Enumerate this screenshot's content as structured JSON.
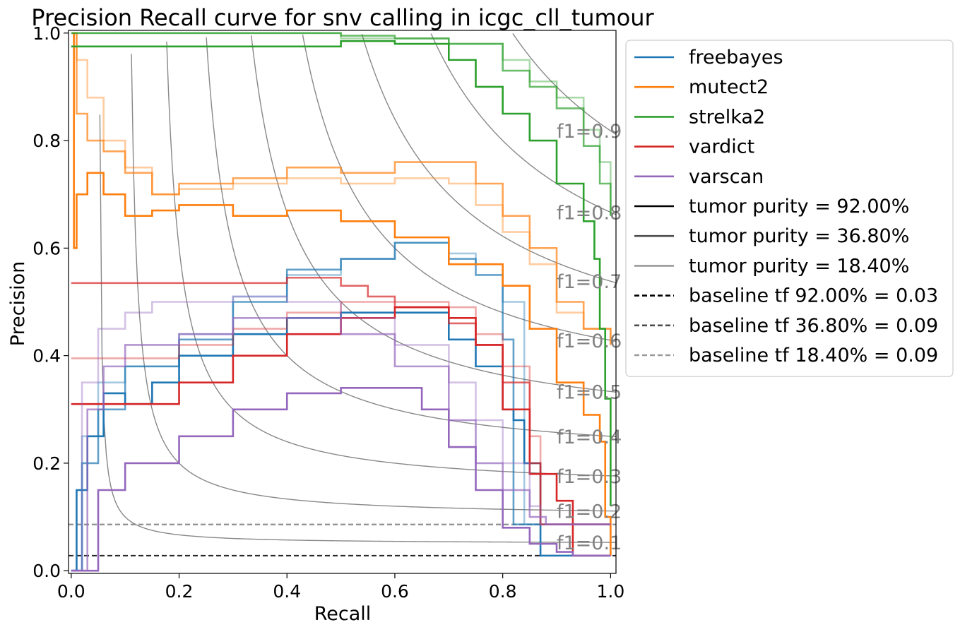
{
  "chart_data": {
    "type": "line",
    "title": "Precision Recall curve for snv calling in icgc_cll_tumour",
    "xlabel": "Recall",
    "ylabel": "Precision",
    "xlim": [
      -0.005,
      1.01
    ],
    "ylim": [
      -0.005,
      1.005
    ],
    "xticks": [
      0.0,
      0.2,
      0.4,
      0.6,
      0.8,
      1.0
    ],
    "yticks": [
      0.0,
      0.2,
      0.4,
      0.6,
      0.8,
      1.0
    ],
    "tick_labels_x": [
      "0.0",
      "0.2",
      "0.4",
      "0.6",
      "0.8",
      "1.0"
    ],
    "tick_labels_y": [
      "0.0",
      "0.2",
      "0.4",
      "0.6",
      "0.8",
      "1.0"
    ],
    "grid": false,
    "legend_position": "outside-right-top",
    "callers": [
      {
        "name": "freebayes",
        "color": "#1f77b4"
      },
      {
        "name": "mutect2",
        "color": "#ff7f0e"
      },
      {
        "name": "strelka2",
        "color": "#2ca02c"
      },
      {
        "name": "vardict",
        "color": "#d62728"
      },
      {
        "name": "varscan",
        "color": "#9467bd"
      }
    ],
    "purities": [
      {
        "label": "tumor purity = 92.00%",
        "alpha": 1.0,
        "legend_color": "#000000"
      },
      {
        "label": "tumor purity = 36.80%",
        "alpha": 0.7,
        "legend_color": "#4d4d4d"
      },
      {
        "label": "tumor purity = 18.40%",
        "alpha": 0.4,
        "legend_color": "#999999"
      }
    ],
    "baselines": [
      {
        "label": "baseline tf 92.00% = 0.03",
        "value": 0.028,
        "color": "#000000"
      },
      {
        "label": "baseline tf 36.80% = 0.09",
        "value": 0.086,
        "color": "#4d4d4d"
      },
      {
        "label": "baseline tf 18.40% = 0.09",
        "value": 0.086,
        "color": "#999999"
      }
    ],
    "f1_contours": [
      {
        "f1": 0.1,
        "label": "f1=0.1"
      },
      {
        "f1": 0.2,
        "label": "f1=0.2"
      },
      {
        "f1": 0.3,
        "label": "f1=0.3"
      },
      {
        "f1": 0.4,
        "label": "f1=0.4"
      },
      {
        "f1": 0.5,
        "label": "f1=0.5"
      },
      {
        "f1": 0.6,
        "label": "f1=0.6"
      },
      {
        "f1": 0.7,
        "label": "f1=0.7"
      },
      {
        "f1": 0.8,
        "label": "f1=0.8"
      },
      {
        "f1": 0.9,
        "label": "f1=0.9"
      }
    ],
    "series": [
      {
        "name": "freebayes",
        "purity": "92.00%",
        "recall": [
          0.0,
          0.01,
          0.03,
          0.06,
          0.1,
          0.15,
          0.2,
          0.3,
          0.4,
          0.5,
          0.6,
          0.7,
          0.75,
          0.8,
          0.82,
          0.84,
          0.87,
          0.87,
          1.0
        ],
        "precision": [
          0.0,
          0.15,
          0.25,
          0.33,
          0.31,
          0.35,
          0.4,
          0.44,
          0.47,
          0.48,
          0.48,
          0.43,
          0.38,
          0.3,
          0.28,
          0.2,
          0.12,
          0.028,
          0.028
        ]
      },
      {
        "name": "freebayes",
        "purity": "36.80%",
        "recall": [
          0.0,
          0.02,
          0.05,
          0.1,
          0.2,
          0.3,
          0.4,
          0.5,
          0.6,
          0.7,
          0.75,
          0.8,
          0.82,
          0.82,
          1.0
        ],
        "precision": [
          0.0,
          0.2,
          0.3,
          0.38,
          0.43,
          0.5,
          0.56,
          0.58,
          0.61,
          0.58,
          0.55,
          0.43,
          0.3,
          0.086,
          0.086
        ]
      },
      {
        "name": "freebayes",
        "purity": "18.40%",
        "recall": [
          0.0,
          0.02,
          0.05,
          0.1,
          0.2,
          0.3,
          0.4,
          0.5,
          0.6,
          0.7,
          0.75,
          0.8,
          0.84,
          0.84,
          1.0
        ],
        "precision": [
          0.0,
          0.25,
          0.35,
          0.38,
          0.44,
          0.51,
          0.55,
          0.58,
          0.61,
          0.59,
          0.57,
          0.5,
          0.4,
          0.086,
          0.086
        ]
      },
      {
        "name": "mutect2",
        "purity": "92.00%",
        "recall": [
          0.002,
          0.005,
          0.01,
          0.03,
          0.06,
          0.1,
          0.15,
          0.2,
          0.25,
          0.3,
          0.4,
          0.5,
          0.6,
          0.7,
          0.8,
          0.85,
          0.9,
          0.95,
          0.98,
          0.99,
          1.0
        ],
        "precision": [
          1.0,
          0.6,
          0.7,
          0.74,
          0.7,
          0.66,
          0.67,
          0.68,
          0.68,
          0.66,
          0.67,
          0.65,
          0.62,
          0.57,
          0.53,
          0.45,
          0.35,
          0.29,
          0.24,
          0.1,
          0.028
        ]
      },
      {
        "name": "mutect2",
        "purity": "36.80%",
        "recall": [
          0.003,
          0.01,
          0.03,
          0.06,
          0.1,
          0.15,
          0.2,
          0.3,
          0.4,
          0.5,
          0.6,
          0.7,
          0.75,
          0.8,
          0.85,
          0.9,
          0.95,
          1.0
        ],
        "precision": [
          1.0,
          0.85,
          0.8,
          0.78,
          0.74,
          0.7,
          0.72,
          0.73,
          0.75,
          0.74,
          0.76,
          0.76,
          0.72,
          0.66,
          0.6,
          0.5,
          0.45,
          0.42
        ]
      },
      {
        "name": "mutect2",
        "purity": "18.40%",
        "recall": [
          0.003,
          0.01,
          0.03,
          0.06,
          0.1,
          0.15,
          0.2,
          0.3,
          0.4,
          0.5,
          0.6,
          0.7,
          0.75,
          0.8,
          0.85,
          0.9,
          0.95,
          1.0
        ],
        "precision": [
          1.0,
          0.95,
          0.88,
          0.8,
          0.75,
          0.7,
          0.71,
          0.72,
          0.73,
          0.72,
          0.73,
          0.72,
          0.68,
          0.63,
          0.57,
          0.48,
          0.45,
          0.42
        ]
      },
      {
        "name": "strelka2",
        "purity": "92.00%",
        "recall": [
          0.0,
          0.2,
          0.4,
          0.5,
          0.6,
          0.7,
          0.75,
          0.8,
          0.85,
          0.9,
          0.95,
          0.97,
          0.98,
          0.99,
          1.0
        ],
        "precision": [
          0.975,
          0.975,
          0.975,
          0.985,
          0.98,
          0.95,
          0.9,
          0.85,
          0.8,
          0.72,
          0.65,
          0.58,
          0.45,
          0.32,
          0.12
        ]
      },
      {
        "name": "strelka2",
        "purity": "36.80%",
        "recall": [
          0.0,
          0.3,
          0.5,
          0.6,
          0.7,
          0.8,
          0.85,
          0.9,
          0.95,
          0.98,
          1.0
        ],
        "precision": [
          1.0,
          1.0,
          0.995,
          0.99,
          0.98,
          0.93,
          0.9,
          0.86,
          0.79,
          0.72,
          0.66
        ]
      },
      {
        "name": "strelka2",
        "purity": "18.40%",
        "recall": [
          0.0,
          0.3,
          0.5,
          0.6,
          0.7,
          0.8,
          0.85,
          0.9,
          0.95,
          0.98,
          1.0
        ],
        "precision": [
          1.0,
          1.0,
          0.99,
          0.99,
          0.98,
          0.95,
          0.91,
          0.88,
          0.82,
          0.76,
          0.66
        ]
      },
      {
        "name": "vardict",
        "purity": "92.00%",
        "recall": [
          0.0,
          0.15,
          0.2,
          0.3,
          0.4,
          0.5,
          0.6,
          0.7,
          0.75,
          0.8,
          0.85,
          0.9,
          0.93,
          0.93,
          1.0
        ],
        "precision": [
          0.31,
          0.31,
          0.35,
          0.4,
          0.44,
          0.47,
          0.49,
          0.47,
          0.42,
          0.3,
          0.18,
          0.13,
          0.11,
          0.028,
          0.028
        ]
      },
      {
        "name": "vardict",
        "purity": "36.80%",
        "recall": [
          0.0,
          0.1,
          0.2,
          0.3,
          0.4,
          0.45,
          0.5,
          0.55,
          0.6,
          0.7,
          0.75,
          0.8,
          0.85,
          0.87,
          0.87,
          1.0
        ],
        "precision": [
          0.535,
          0.535,
          0.535,
          0.535,
          0.545,
          0.545,
          0.53,
          0.51,
          0.49,
          0.46,
          0.42,
          0.35,
          0.2,
          0.13,
          0.086,
          0.086
        ]
      },
      {
        "name": "vardict",
        "purity": "18.40%",
        "recall": [
          0.0,
          0.1,
          0.2,
          0.3,
          0.4,
          0.5,
          0.6,
          0.7,
          0.75,
          0.8,
          0.85,
          0.87,
          0.87,
          1.0
        ],
        "precision": [
          0.395,
          0.395,
          0.42,
          0.45,
          0.48,
          0.5,
          0.5,
          0.49,
          0.44,
          0.38,
          0.25,
          0.15,
          0.086,
          0.086
        ]
      },
      {
        "name": "varscan",
        "purity": "92.00%",
        "recall": [
          0.0,
          0.05,
          0.1,
          0.2,
          0.3,
          0.4,
          0.5,
          0.6,
          0.65,
          0.7,
          0.75,
          0.8,
          0.85,
          0.9,
          0.93,
          1.0
        ],
        "precision": [
          0.0,
          0.15,
          0.2,
          0.25,
          0.3,
          0.33,
          0.34,
          0.34,
          0.3,
          0.23,
          0.15,
          0.08,
          0.05,
          0.035,
          0.028,
          0.028
        ]
      },
      {
        "name": "varscan",
        "purity": "36.80%",
        "recall": [
          0.0,
          0.03,
          0.06,
          0.1,
          0.2,
          0.3,
          0.4,
          0.5,
          0.6,
          0.7,
          0.75,
          0.8,
          0.85,
          0.88,
          0.88,
          1.0
        ],
        "precision": [
          0.0,
          0.3,
          0.38,
          0.42,
          0.44,
          0.47,
          0.47,
          0.44,
          0.38,
          0.28,
          0.2,
          0.15,
          0.1,
          0.086,
          0.086,
          0.086
        ]
      },
      {
        "name": "varscan",
        "purity": "18.40%",
        "recall": [
          0.0,
          0.02,
          0.05,
          0.1,
          0.15,
          0.2,
          0.3,
          0.4,
          0.5,
          0.6,
          0.7,
          0.75,
          0.8,
          0.85,
          0.87,
          0.87,
          1.0
        ],
        "precision": [
          0.0,
          0.35,
          0.45,
          0.48,
          0.5,
          0.5,
          0.51,
          0.5,
          0.47,
          0.42,
          0.35,
          0.28,
          0.2,
          0.12,
          0.09,
          0.086,
          0.086
        ]
      }
    ]
  }
}
